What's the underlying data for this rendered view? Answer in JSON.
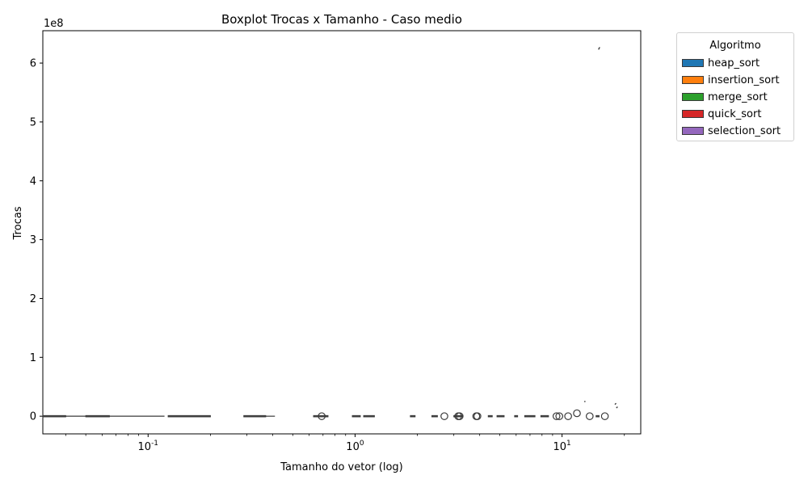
{
  "chart_data": {
    "type": "boxplot",
    "title": "Boxplot Trocas x Tamanho - Caso medio",
    "xlabel": "Tamanho do vetor (log)",
    "ylabel": "Trocas",
    "x_scale": "log",
    "xlim": [
      0.031,
      24
    ],
    "ylim": [
      -30000000,
      655000000
    ],
    "y_offset_label": "1e8",
    "y_ticks": [
      0,
      100000000,
      200000000,
      300000000,
      400000000,
      500000000,
      600000000
    ],
    "y_tick_labels": [
      "0",
      "1",
      "2",
      "3",
      "4",
      "5",
      "6"
    ],
    "x_ticks": [
      0.1,
      1,
      10
    ],
    "x_tick_labels": [
      "10^-1",
      "10^0",
      "10^1"
    ],
    "grid": false,
    "legend": {
      "title": "Algoritmo",
      "placement": "outside right",
      "entries": [
        {
          "name": "heap_sort",
          "color": "#1f77b4"
        },
        {
          "name": "insertion_sort",
          "color": "#ff7f0e"
        },
        {
          "name": "merge_sort",
          "color": "#2ca02c"
        },
        {
          "name": "quick_sort",
          "color": "#d62728"
        },
        {
          "name": "selection_sort",
          "color": "#9467bd"
        }
      ]
    },
    "boxes": [
      {
        "x_low": 0.031,
        "x_high": 0.04,
        "whisker_high": 0.052,
        "y": 0
      },
      {
        "x_low": 0.05,
        "x_high": 0.065,
        "whisker_high": 0.12,
        "y": 0
      },
      {
        "x_low": 0.125,
        "x_high": 0.2,
        "whisker_high": 0.2,
        "y": 0
      },
      {
        "x_low": 0.29,
        "x_high": 0.37,
        "whisker_high": 0.41,
        "y": 0
      },
      {
        "x_low": 0.63,
        "x_high": 0.74,
        "whisker_high": 0.74,
        "y": 0
      },
      {
        "x_low": 0.97,
        "x_high": 1.06,
        "whisker_high": 1.06,
        "y": 0
      },
      {
        "x_low": 1.1,
        "x_high": 1.24,
        "whisker_high": 1.24,
        "y": 0
      },
      {
        "x_low": 1.85,
        "x_high": 1.95,
        "whisker_high": 1.95,
        "y": 0
      },
      {
        "x_low": 2.35,
        "x_high": 2.5,
        "whisker_high": 2.5,
        "y": 0
      },
      {
        "x_low": 3.0,
        "x_high": 3.3,
        "whisker_high": 3.3,
        "y": 0
      },
      {
        "x_low": 4.4,
        "x_high": 4.6,
        "whisker_high": 4.6,
        "y": 0
      },
      {
        "x_low": 4.85,
        "x_high": 5.25,
        "whisker_high": 5.25,
        "y": 0
      },
      {
        "x_low": 5.9,
        "x_high": 6.1,
        "whisker_high": 6.1,
        "y": 0
      },
      {
        "x_low": 6.6,
        "x_high": 7.4,
        "whisker_high": 7.4,
        "y": 0
      },
      {
        "x_low": 7.9,
        "x_high": 8.6,
        "whisker_high": 8.6,
        "y": 0
      },
      {
        "x_low": 14.6,
        "x_high": 15.1,
        "whisker_high": 15.1,
        "y": 0
      }
    ],
    "outliers": [
      {
        "x": 0.69,
        "y": 0
      },
      {
        "x": 2.7,
        "y": 0
      },
      {
        "x": 3.15,
        "y": 0
      },
      {
        "x": 3.2,
        "y": 0
      },
      {
        "x": 3.85,
        "y": 0
      },
      {
        "x": 3.9,
        "y": 0
      },
      {
        "x": 9.4,
        "y": 0
      },
      {
        "x": 9.7,
        "y": 0
      },
      {
        "x": 10.7,
        "y": 0
      },
      {
        "x": 11.8,
        "y": 5000000
      },
      {
        "x": 13.6,
        "y": 0
      },
      {
        "x": 16.1,
        "y": 0
      }
    ],
    "small_marks": [
      {
        "x": 12.8,
        "y": 25000000,
        "dx": 0.1,
        "dy": 0
      },
      {
        "x": 15.0,
        "y": 623000000,
        "dx": 0.05,
        "dy": 4000000
      },
      {
        "x": 18.0,
        "y": 20000000,
        "dx": 0.25,
        "dy": 2000000
      },
      {
        "x": 18.3,
        "y": 14000000,
        "dx": 0.0,
        "dy": 2000000
      }
    ]
  }
}
